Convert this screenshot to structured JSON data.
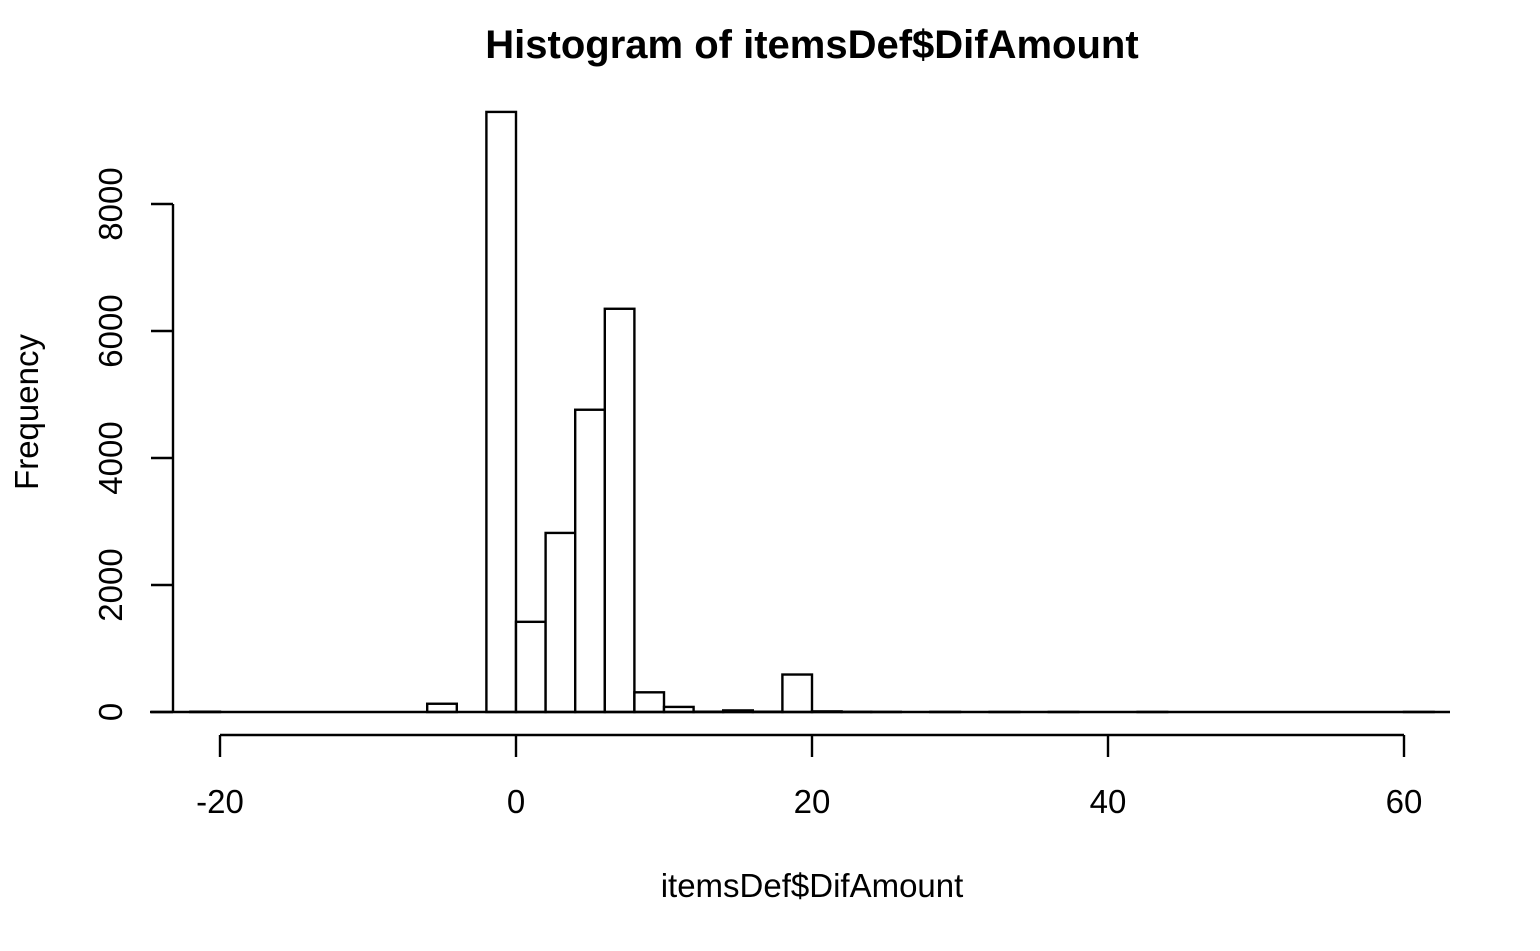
{
  "chart_data": {
    "type": "bar",
    "title": "Histogram of itemsDef$DifAmount",
    "xlabel": "itemsDef$DifAmount",
    "ylabel": "Frequency",
    "xlim": [
      -24,
      63
    ],
    "ylim": [
      0,
      9800
    ],
    "x_ticks": [
      -20,
      0,
      20,
      40,
      60
    ],
    "y_ticks": [
      0,
      2000,
      4000,
      6000,
      8000
    ],
    "bin_width": 2,
    "bins": [
      {
        "start": -22,
        "end": -20,
        "count": 5
      },
      {
        "start": -6,
        "end": -4,
        "count": 130
      },
      {
        "start": -2,
        "end": 0,
        "count": 9450
      },
      {
        "start": 0,
        "end": 2,
        "count": 1420
      },
      {
        "start": 2,
        "end": 4,
        "count": 2820
      },
      {
        "start": 4,
        "end": 6,
        "count": 4760
      },
      {
        "start": 6,
        "end": 8,
        "count": 6350
      },
      {
        "start": 8,
        "end": 10,
        "count": 310
      },
      {
        "start": 10,
        "end": 12,
        "count": 80
      },
      {
        "start": 12,
        "end": 14,
        "count": 5
      },
      {
        "start": 14,
        "end": 16,
        "count": 25
      },
      {
        "start": 16,
        "end": 18,
        "count": 5
      },
      {
        "start": 18,
        "end": 20,
        "count": 590
      },
      {
        "start": 20,
        "end": 22,
        "count": 10
      },
      {
        "start": 22,
        "end": 24,
        "count": 3
      },
      {
        "start": 24,
        "end": 26,
        "count": 2
      },
      {
        "start": 28,
        "end": 30,
        "count": 2
      },
      {
        "start": 32,
        "end": 34,
        "count": 1
      },
      {
        "start": 36,
        "end": 38,
        "count": 1
      },
      {
        "start": 42,
        "end": 44,
        "count": 1
      },
      {
        "start": 60,
        "end": 62,
        "count": 1
      }
    ],
    "grid": false,
    "legend": "none"
  }
}
